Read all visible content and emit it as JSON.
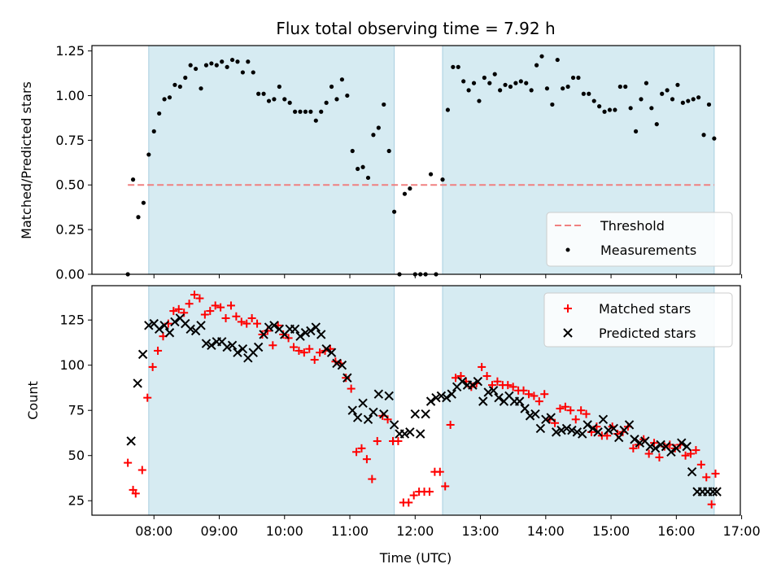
{
  "chart_data": [
    {
      "type": "scatter",
      "title": "Flux total observing time = 7.92 h",
      "xlabel": "",
      "ylabel": "Matched/Predicted stars",
      "ylim": [
        0,
        1.28
      ],
      "yticks": [
        "0.00",
        "0.25",
        "0.50",
        "0.75",
        "1.00",
        "1.25"
      ],
      "ytick_values": [
        0,
        0.25,
        0.5,
        0.75,
        1.0,
        1.25
      ],
      "xlim": [
        7.05,
        16.98
      ],
      "shaded_intervals": [
        [
          7.92,
          11.68
        ],
        [
          12.42,
          16.58
        ]
      ],
      "threshold": 0.5,
      "threshold_range": [
        7.6,
        16.58
      ],
      "legend_position": "lower-right",
      "series": [
        {
          "name": "Threshold",
          "kind": "dashed-line",
          "color": "#f08080"
        },
        {
          "name": "Measurements",
          "kind": "points",
          "color": "#000000",
          "x": [
            7.6,
            7.68,
            7.76,
            7.84,
            7.92,
            8.0,
            8.08,
            8.16,
            8.24,
            8.32,
            8.4,
            8.48,
            8.56,
            8.64,
            8.72,
            8.8,
            8.88,
            8.96,
            9.04,
            9.12,
            9.2,
            9.28,
            9.36,
            9.44,
            9.52,
            9.6,
            9.68,
            9.76,
            9.84,
            9.92,
            10.0,
            10.08,
            10.16,
            10.24,
            10.32,
            10.4,
            10.48,
            10.56,
            10.64,
            10.72,
            10.8,
            10.88,
            10.96,
            11.04,
            11.12,
            11.2,
            11.28,
            11.36,
            11.44,
            11.52,
            11.6,
            11.68,
            11.76,
            11.84,
            11.92,
            12.0,
            12.08,
            12.16,
            12.24,
            12.32,
            12.42,
            12.5,
            12.58,
            12.66,
            12.74,
            12.82,
            12.9,
            12.98,
            13.06,
            13.14,
            13.22,
            13.3,
            13.38,
            13.46,
            13.54,
            13.62,
            13.7,
            13.78,
            13.86,
            13.94,
            14.02,
            14.1,
            14.18,
            14.26,
            14.34,
            14.42,
            14.5,
            14.58,
            14.66,
            14.74,
            14.82,
            14.9,
            14.98,
            15.06,
            15.14,
            15.22,
            15.3,
            15.38,
            15.46,
            15.54,
            15.62,
            15.7,
            15.78,
            15.86,
            15.94,
            16.02,
            16.1,
            16.18,
            16.26,
            16.34,
            16.42,
            16.5,
            16.58
          ],
          "y": [
            0.0,
            0.53,
            0.32,
            0.4,
            0.67,
            0.8,
            0.9,
            0.98,
            0.99,
            1.06,
            1.05,
            1.1,
            1.17,
            1.15,
            1.04,
            1.17,
            1.18,
            1.17,
            1.19,
            1.16,
            1.2,
            1.19,
            1.13,
            1.19,
            1.13,
            1.01,
            1.01,
            0.97,
            0.98,
            1.05,
            0.98,
            0.96,
            0.91,
            0.91,
            0.91,
            0.91,
            0.86,
            0.91,
            0.96,
            1.05,
            0.98,
            1.09,
            1.0,
            0.69,
            0.59,
            0.6,
            0.54,
            0.78,
            0.82,
            0.95,
            0.69,
            0.35,
            0.0,
            0.45,
            0.48,
            0.0,
            0.0,
            0.0,
            0.56,
            0.0,
            0.53,
            0.92,
            1.16,
            1.16,
            1.08,
            1.03,
            1.07,
            0.97,
            1.1,
            1.07,
            1.12,
            1.03,
            1.06,
            1.05,
            1.07,
            1.08,
            1.07,
            1.03,
            1.17,
            1.22,
            1.04,
            0.95,
            1.2,
            1.04,
            1.05,
            1.1,
            1.1,
            1.01,
            1.01,
            0.97,
            0.94,
            0.91,
            0.92,
            0.92,
            1.05,
            1.05,
            0.93,
            0.8,
            0.98,
            1.07,
            0.93,
            0.84,
            1.01,
            1.03,
            0.98,
            1.06,
            0.96,
            0.97,
            0.98,
            0.99,
            0.78,
            0.95,
            0.76
          ]
        }
      ]
    },
    {
      "type": "scatter",
      "title": "",
      "xlabel": "Time (UTC)",
      "ylabel": "Count",
      "ylim": [
        17,
        144
      ],
      "yticks": [
        "25",
        "50",
        "75",
        "100",
        "125"
      ],
      "ytick_values": [
        25,
        50,
        75,
        100,
        125
      ],
      "xlim": [
        7.05,
        16.98
      ],
      "xticks": [
        "08:00",
        "09:00",
        "10:00",
        "11:00",
        "12:00",
        "13:00",
        "14:00",
        "15:00",
        "16:00",
        "17:00"
      ],
      "xtick_values": [
        8,
        9,
        10,
        11,
        12,
        13,
        14,
        15,
        16,
        17
      ],
      "shaded_intervals": [
        [
          7.92,
          11.68
        ],
        [
          12.42,
          16.58
        ]
      ],
      "legend_position": "upper-right",
      "series": [
        {
          "name": "Matched stars",
          "kind": "plus",
          "color": "#ff0000",
          "x": [
            7.6,
            7.68,
            7.72,
            7.82,
            7.9,
            7.98,
            8.06,
            8.14,
            8.22,
            8.3,
            8.38,
            8.46,
            8.54,
            8.62,
            8.7,
            8.78,
            8.86,
            8.94,
            9.02,
            9.1,
            9.18,
            9.26,
            9.34,
            9.42,
            9.5,
            9.58,
            9.66,
            9.74,
            9.82,
            9.9,
            9.98,
            10.06,
            10.14,
            10.22,
            10.3,
            10.38,
            10.46,
            10.54,
            10.62,
            10.7,
            10.78,
            10.86,
            10.94,
            11.02,
            11.1,
            11.18,
            11.26,
            11.34,
            11.42,
            11.5,
            11.58,
            11.66,
            11.74,
            11.82,
            11.9,
            11.98,
            12.06,
            12.14,
            12.22,
            12.3,
            12.38,
            12.46,
            12.54,
            12.62,
            12.7,
            12.78,
            12.86,
            12.94,
            13.02,
            13.1,
            13.18,
            13.26,
            13.34,
            13.42,
            13.5,
            13.58,
            13.66,
            13.74,
            13.82,
            13.9,
            13.98,
            14.06,
            14.14,
            14.22,
            14.3,
            14.38,
            14.46,
            14.54,
            14.62,
            14.7,
            14.78,
            14.86,
            14.94,
            15.02,
            15.1,
            15.18,
            15.26,
            15.34,
            15.42,
            15.5,
            15.58,
            15.66,
            15.74,
            15.82,
            15.9,
            15.98,
            16.06,
            16.14,
            16.22,
            16.3,
            16.38,
            16.46,
            16.54,
            16.6
          ],
          "y": [
            46,
            31,
            29,
            42,
            82,
            99,
            108,
            116,
            123,
            130,
            131,
            129,
            134,
            139,
            137,
            128,
            130,
            133,
            132,
            126,
            133,
            127,
            124,
            123,
            126,
            123,
            117,
            119,
            111,
            122,
            117,
            115,
            110,
            108,
            107,
            109,
            103,
            107,
            108,
            109,
            102,
            101,
            93,
            87,
            52,
            54,
            48,
            37,
            58,
            72,
            70,
            58,
            58,
            24,
            24,
            28,
            30,
            30,
            30,
            41,
            41,
            33,
            67,
            93,
            94,
            91,
            88,
            90,
            99,
            94,
            89,
            91,
            89,
            89,
            88,
            86,
            86,
            84,
            83,
            80,
            84,
            70,
            68,
            76,
            77,
            75,
            70,
            75,
            73,
            63,
            66,
            61,
            61,
            66,
            62,
            63,
            66,
            54,
            56,
            59,
            51,
            57,
            49,
            55,
            56,
            54,
            56,
            50,
            51,
            53,
            45,
            38,
            23,
            40
          ]
        },
        {
          "name": "Predicted stars",
          "kind": "cross",
          "color": "#000000",
          "x": [
            7.65,
            7.75,
            7.83,
            7.92,
            8.0,
            8.08,
            8.16,
            8.24,
            8.32,
            8.4,
            8.48,
            8.56,
            8.64,
            8.72,
            8.8,
            8.88,
            8.96,
            9.04,
            9.12,
            9.2,
            9.28,
            9.36,
            9.44,
            9.52,
            9.6,
            9.68,
            9.76,
            9.84,
            9.92,
            10.0,
            10.08,
            10.16,
            10.24,
            10.32,
            10.4,
            10.48,
            10.56,
            10.64,
            10.72,
            10.8,
            10.88,
            10.96,
            11.04,
            11.12,
            11.2,
            11.28,
            11.36,
            11.44,
            11.52,
            11.6,
            11.68,
            11.76,
            11.84,
            11.92,
            12.0,
            12.08,
            12.16,
            12.24,
            12.32,
            12.4,
            12.48,
            12.56,
            12.64,
            12.72,
            12.8,
            12.88,
            12.96,
            13.04,
            13.12,
            13.2,
            13.28,
            13.36,
            13.44,
            13.52,
            13.6,
            13.68,
            13.76,
            13.84,
            13.92,
            14.0,
            14.08,
            14.16,
            14.24,
            14.32,
            14.4,
            14.48,
            14.56,
            14.64,
            14.72,
            14.8,
            14.88,
            14.96,
            15.04,
            15.12,
            15.2,
            15.28,
            15.36,
            15.44,
            15.52,
            15.6,
            15.68,
            15.76,
            15.84,
            15.92,
            16.0,
            16.08,
            16.16,
            16.24,
            16.32,
            16.4,
            16.48,
            16.56,
            16.62
          ],
          "y": [
            58,
            90,
            106,
            122,
            123,
            120,
            122,
            118,
            124,
            126,
            123,
            120,
            119,
            122,
            112,
            111,
            113,
            113,
            110,
            111,
            107,
            109,
            104,
            107,
            110,
            117,
            121,
            122,
            120,
            117,
            120,
            120,
            116,
            118,
            119,
            121,
            117,
            109,
            107,
            101,
            100,
            93,
            75,
            71,
            79,
            70,
            74,
            84,
            73,
            83,
            67,
            62,
            62,
            63,
            73,
            62,
            73,
            80,
            82,
            83,
            82,
            84,
            88,
            91,
            89,
            89,
            91,
            80,
            85,
            86,
            82,
            80,
            83,
            80,
            80,
            76,
            72,
            73,
            65,
            70,
            71,
            63,
            64,
            65,
            64,
            63,
            62,
            67,
            65,
            63,
            70,
            64,
            65,
            60,
            64,
            67,
            59,
            57,
            58,
            55,
            54,
            56,
            55,
            52,
            54,
            57,
            55,
            41,
            30,
            30,
            30,
            30,
            30
          ]
        }
      ]
    }
  ]
}
